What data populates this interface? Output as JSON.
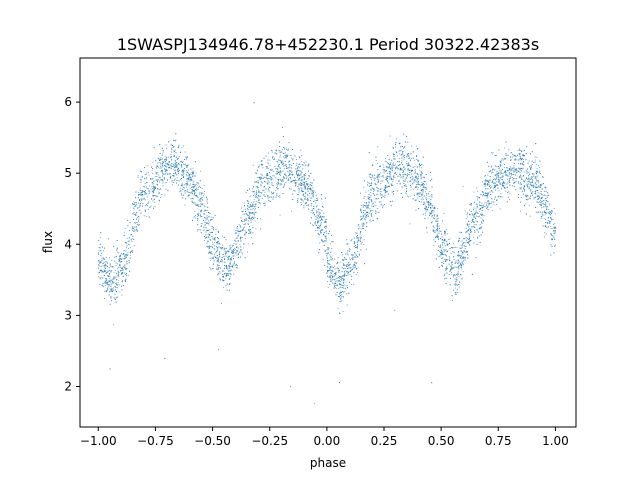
{
  "chart_data": {
    "type": "scatter",
    "title": "1SWASPJ134946.78+452230.1 Period 30322.42383s",
    "xlabel": "phase",
    "ylabel": "flux",
    "xlim": [
      -1.08,
      1.09
    ],
    "ylim": [
      1.43,
      6.62
    ],
    "x_ticks": [
      -1.0,
      -0.75,
      -0.5,
      -0.25,
      0.0,
      0.25,
      0.5,
      0.75,
      1.0
    ],
    "x_tick_labels": [
      "−1.00",
      "−0.75",
      "−0.50",
      "−0.25",
      "0.00",
      "0.25",
      "0.50",
      "0.75",
      "1.00"
    ],
    "y_ticks": [
      2,
      3,
      4,
      5,
      6
    ],
    "y_tick_labels": [
      "2",
      "3",
      "4",
      "5",
      "6"
    ],
    "grid": false,
    "legend": "none",
    "point_color": "#1f77b4",
    "series": [
      {
        "phase_range": [
          -1.0,
          1.0
        ],
        "light_curve_profile": {
          "phase": [
            0.0,
            0.06,
            0.1,
            0.2,
            0.32,
            0.4,
            0.45,
            0.5,
            0.56,
            0.65,
            0.72,
            0.82,
            0.9,
            1.0
          ],
          "flux": [
            3.75,
            3.45,
            3.7,
            4.7,
            5.15,
            4.9,
            4.55,
            4.0,
            3.65,
            4.35,
            4.85,
            5.05,
            4.85,
            4.2
          ]
        },
        "scatter_sigma": 0.18,
        "outlier_flux_range": [
          1.7,
          6.5
        ]
      }
    ]
  }
}
